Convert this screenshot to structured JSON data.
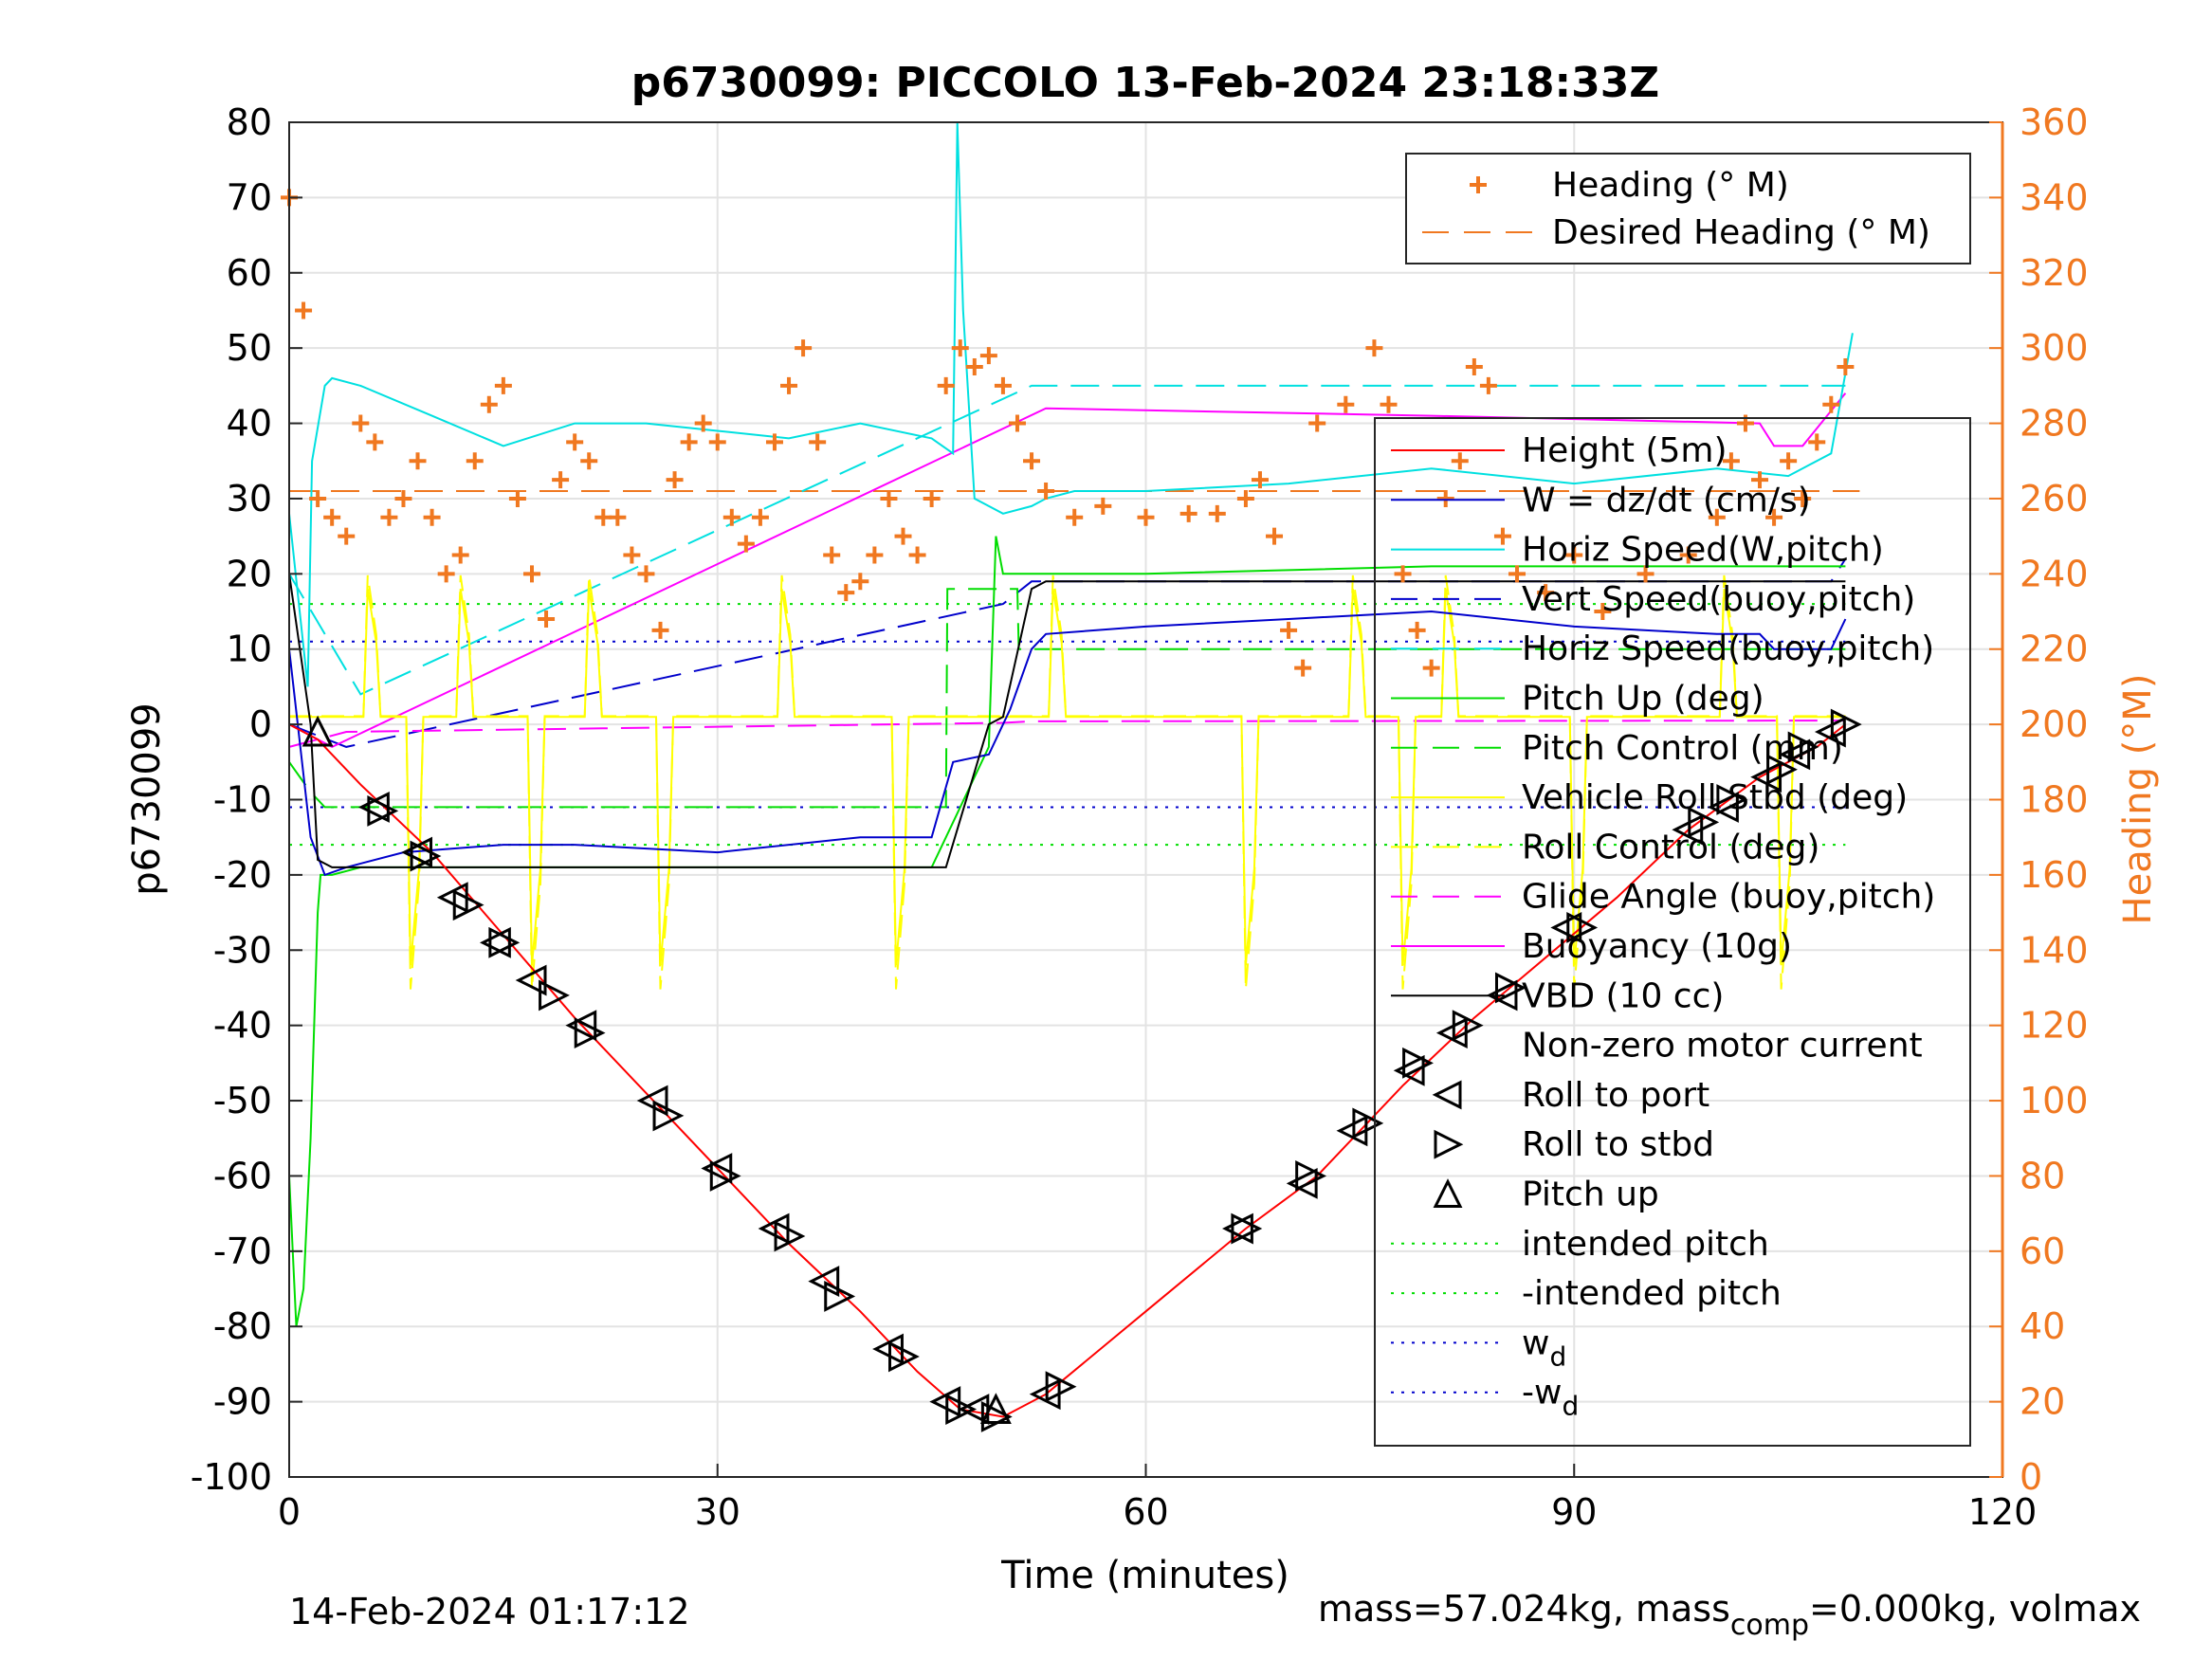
{
  "chart_data": {
    "type": "line",
    "title": "p6730099: PICCOLO 13-Feb-2024 23:18:33Z",
    "xlabel": "Time (minutes)",
    "ylabel": "p6730099",
    "ylabel_right": "Heading (°M)",
    "xlim": [
      0,
      120
    ],
    "ylim": [
      -100,
      80
    ],
    "ylim_right": [
      0,
      360
    ],
    "x_ticks": [
      "0",
      "30",
      "60",
      "90",
      "120"
    ],
    "y_ticks": [
      "80",
      "70",
      "60",
      "50",
      "40",
      "30",
      "20",
      "10",
      "0",
      "-10",
      "-20",
      "-30",
      "-40",
      "-50",
      "-60",
      "-70",
      "-80",
      "-90",
      "-100"
    ],
    "y_ticks_right": [
      "360",
      "340",
      "320",
      "300",
      "280",
      "260",
      "240",
      "220",
      "200",
      "180",
      "160",
      "140",
      "120",
      "100",
      "80",
      "60",
      "40",
      "20",
      "0"
    ],
    "grid": true,
    "footer_left": "14-Feb-2024 01:17:12",
    "footer_right": {
      "pre": "mass=57.024kg, mass",
      "sub": "comp",
      "post": "=0.000kg, volmax"
    },
    "legend_heading": [
      {
        "name": "Heading (° M)",
        "color": "#f07820",
        "style": "plus"
      },
      {
        "name": "Desired Heading (° M)",
        "color": "#f07820",
        "style": "dash"
      }
    ],
    "legend_main": [
      {
        "name": "Height (5m)",
        "color": "#ff0000",
        "style": "solid"
      },
      {
        "name": "W = dz/dt (cm/s)",
        "color": "#0000cc",
        "style": "solid"
      },
      {
        "name": "Horiz Speed(W,pitch)",
        "color": "#00e0e0",
        "style": "solid"
      },
      {
        "name": "Vert Speed(buoy,pitch)",
        "color": "#0000cc",
        "style": "dash"
      },
      {
        "name": "Horiz Speed(buoy,pitch)",
        "color": "#00e0e0",
        "style": "dash"
      },
      {
        "name": "Pitch Up (deg)",
        "color": "#00dd00",
        "style": "solid"
      },
      {
        "name": "Pitch Control (mm)",
        "color": "#00dd00",
        "style": "dash"
      },
      {
        "name": "Vehicle Roll Stbd (deg)",
        "color": "#ffff00",
        "style": "solid"
      },
      {
        "name": "Roll Control (deg)",
        "color": "#ffff00",
        "style": "dash"
      },
      {
        "name": "Glide Angle (buoy,pitch)",
        "color": "#ff00ff",
        "style": "dash"
      },
      {
        "name": "Buoyancy (10g)",
        "color": "#ff00ff",
        "style": "solid"
      },
      {
        "name": "VBD (10 cc)",
        "color": "#000000",
        "style": "solid"
      },
      {
        "name": "Non-zero motor current",
        "color": "#000000",
        "style": "none"
      },
      {
        "name": "Roll to port",
        "color": "#000000",
        "style": "tri-left"
      },
      {
        "name": "Roll to stbd",
        "color": "#000000",
        "style": "tri-right"
      },
      {
        "name": "Pitch up",
        "color": "#000000",
        "style": "tri-up"
      },
      {
        "name": "intended pitch",
        "color": "#00dd00",
        "style": "dot"
      },
      {
        "name": "-intended pitch",
        "color": "#00dd00",
        "style": "dot"
      },
      {
        "name": "w",
        "sub": "d",
        "color": "#0000cc",
        "style": "dot"
      },
      {
        "name": "-w",
        "sub": "d",
        "color": "#0000cc",
        "style": "dot"
      }
    ],
    "series": {
      "height": {
        "x": [
          0,
          2,
          5,
          10,
          15,
          20,
          25,
          30,
          35,
          40,
          44,
          47,
          50,
          53,
          60,
          67,
          72,
          78,
          83,
          88,
          93,
          98,
          103,
          107,
          109
        ],
        "y": [
          0,
          -2,
          -8,
          -17,
          -28,
          -39,
          -49,
          -59,
          -69,
          -78,
          -86,
          -91,
          -92,
          -89,
          -78,
          -67,
          -60,
          -48,
          -39,
          -31,
          -23,
          -14,
          -7,
          -3,
          0
        ]
      },
      "w": {
        "x": [
          0,
          1.5,
          2.5,
          4,
          8,
          15,
          20,
          30,
          40,
          45,
          46.5,
          49,
          50.5,
          52,
          53,
          60,
          70,
          80,
          90,
          100,
          103,
          104,
          108,
          109
        ],
        "y": [
          10,
          -15,
          -20,
          -19,
          -17,
          -16,
          -16,
          -17,
          -15,
          -15,
          -5,
          -4,
          2,
          10,
          12,
          13,
          14,
          15,
          13,
          12,
          12,
          10,
          10,
          14
        ]
      },
      "horiz_speed_w": {
        "x": [
          0,
          1.3,
          1.6,
          2.5,
          3,
          5,
          10,
          15,
          20,
          25,
          30,
          35,
          40,
          45,
          46.5,
          46.8,
          47.2,
          48,
          50,
          52,
          53,
          55,
          60,
          70,
          80,
          90,
          100,
          105,
          108,
          109.5
        ],
        "y": [
          28,
          5,
          35,
          45,
          46,
          45,
          41,
          37,
          40,
          40,
          39,
          38,
          40,
          38,
          36,
          80,
          55,
          30,
          28,
          29,
          30,
          31,
          31,
          32,
          34,
          32,
          34,
          33,
          36,
          52
        ]
      },
      "vert_speed_buoy": {
        "x": [
          0,
          4,
          50,
          52,
          108,
          109
        ],
        "y": [
          0,
          -3,
          16,
          19,
          19,
          22
        ]
      },
      "horiz_speed_buoy": {
        "x": [
          0,
          5,
          52,
          55,
          109
        ],
        "y": [
          20,
          4,
          45,
          45,
          45
        ]
      },
      "pitch": {
        "x": [
          0,
          0.5,
          1,
          1.5,
          2,
          2.2,
          3,
          5,
          10,
          20,
          30,
          40,
          45,
          46,
          49,
          49.5,
          50,
          52,
          60,
          80,
          100,
          108,
          109
        ],
        "y": [
          -60,
          -80,
          -75,
          -55,
          -25,
          -20,
          -20,
          -19,
          -19,
          -19,
          -19,
          -19,
          -19,
          -15,
          -3,
          25,
          20,
          20,
          20,
          21,
          21,
          21,
          21
        ]
      },
      "pitch_control": {
        "x": [
          0,
          1.5,
          2.5,
          46,
          46.1,
          51,
          51.1,
          109
        ],
        "y": [
          -5,
          -9,
          -11,
          -11,
          18,
          18,
          10,
          10
        ]
      },
      "glide_angle": {
        "x": [
          0,
          4,
          50,
          52,
          109
        ],
        "y": [
          -3,
          -1,
          0.2,
          0.4,
          0.5
        ]
      },
      "buoyancy": {
        "x": [
          0,
          3,
          53,
          80,
          103,
          104,
          106,
          109
        ],
        "y": [
          0,
          -3,
          42,
          41,
          40,
          37,
          37,
          44
        ]
      },
      "vbd": {
        "x": [
          0,
          1.5,
          2,
          3,
          46,
          49,
          50,
          52,
          53,
          109
        ],
        "y": [
          20,
          0,
          -18,
          -19,
          -19,
          0,
          1,
          18,
          19,
          19
        ]
      },
      "heading": {
        "x": [
          0,
          1,
          2,
          3,
          4,
          5,
          6,
          7,
          8,
          9,
          10,
          11,
          12,
          13,
          14,
          15,
          16,
          17,
          18,
          19,
          20,
          21,
          22,
          23,
          24,
          25,
          26,
          27,
          28,
          29,
          30,
          31,
          32,
          33,
          34,
          35,
          36,
          37,
          38,
          39,
          40,
          41,
          42,
          43,
          44,
          45,
          46,
          47,
          48,
          49,
          50,
          51,
          52,
          53,
          55,
          57,
          60,
          63,
          65,
          67,
          68,
          69,
          70,
          71,
          72,
          74,
          76,
          77,
          78,
          79,
          80,
          81,
          82,
          83,
          84,
          85,
          86,
          88,
          90,
          92,
          95,
          98,
          100,
          101,
          102,
          103,
          104,
          105,
          106,
          107,
          108,
          109
        ],
        "y": [
          340,
          310,
          260,
          255,
          250,
          280,
          275,
          255,
          260,
          270,
          255,
          240,
          245,
          270,
          285,
          290,
          260,
          240,
          228,
          265,
          275,
          270,
          255,
          255,
          245,
          240,
          225,
          265,
          275,
          280,
          275,
          255,
          248,
          255,
          275,
          290,
          300,
          275,
          245,
          235,
          238,
          245,
          260,
          250,
          245,
          260,
          290,
          300,
          295,
          298,
          290,
          280,
          270,
          262,
          255,
          258,
          255,
          256,
          256,
          260,
          265,
          250,
          225,
          215,
          280,
          285,
          300,
          285,
          240,
          225,
          215,
          260,
          270,
          295,
          290,
          250,
          240,
          235,
          245,
          230,
          240,
          245,
          255,
          270,
          280,
          265,
          255,
          270,
          260,
          275,
          285,
          295
        ]
      },
      "desired_heading": {
        "x": [
          0,
          110
        ],
        "y": [
          262,
          262
        ]
      }
    },
    "intended_pitch": 16,
    "wd": 11,
    "roll_ctrl_spikes": [
      5.5,
      8.5,
      12,
      17,
      21,
      26,
      34.5,
      42.5,
      53.5,
      67,
      74.5,
      78,
      81,
      90,
      100.5,
      104.5
    ],
    "heading_axis_levels": [
      0,
      360
    ],
    "markers": {
      "port": {
        "x": [
          6,
          9,
          11.5,
          14.5,
          17,
          20.5,
          25.5,
          30,
          34,
          37.5,
          42,
          46,
          48,
          53,
          66.5,
          71,
          74.5,
          78.5,
          81.5,
          85,
          89.5,
          98,
          100.5,
          103.5,
          105.5,
          108
        ],
        "y": [
          -11,
          -17,
          -23,
          -29,
          -34,
          -40,
          -50,
          -59,
          -67,
          -74,
          -83,
          -90,
          -91,
          -89,
          -67,
          -61,
          -54,
          -46,
          -41,
          -36,
          -27,
          -14,
          -11,
          -7,
          -4,
          -1
        ]
      },
      "stbd": {
        "x": [
          6.5,
          9.5,
          12.5,
          15,
          18.5,
          21,
          26.5,
          30.5,
          35,
          38.5,
          43,
          47,
          49.5,
          54,
          67,
          71.5,
          75.5,
          79,
          82.5,
          85.5,
          90.5,
          99,
          101,
          104.5,
          106,
          109
        ],
        "y": [
          -11.5,
          -17.5,
          -24,
          -29,
          -36,
          -41,
          -52,
          -60,
          -68,
          -76,
          -84,
          -91,
          -92,
          -88,
          -67,
          -60,
          -53,
          -45,
          -40,
          -35,
          -27,
          -13,
          -10,
          -6,
          -3,
          0
        ]
      },
      "up": {
        "x": [
          2,
          49.5
        ],
        "y": [
          -1,
          -91
        ]
      }
    }
  }
}
